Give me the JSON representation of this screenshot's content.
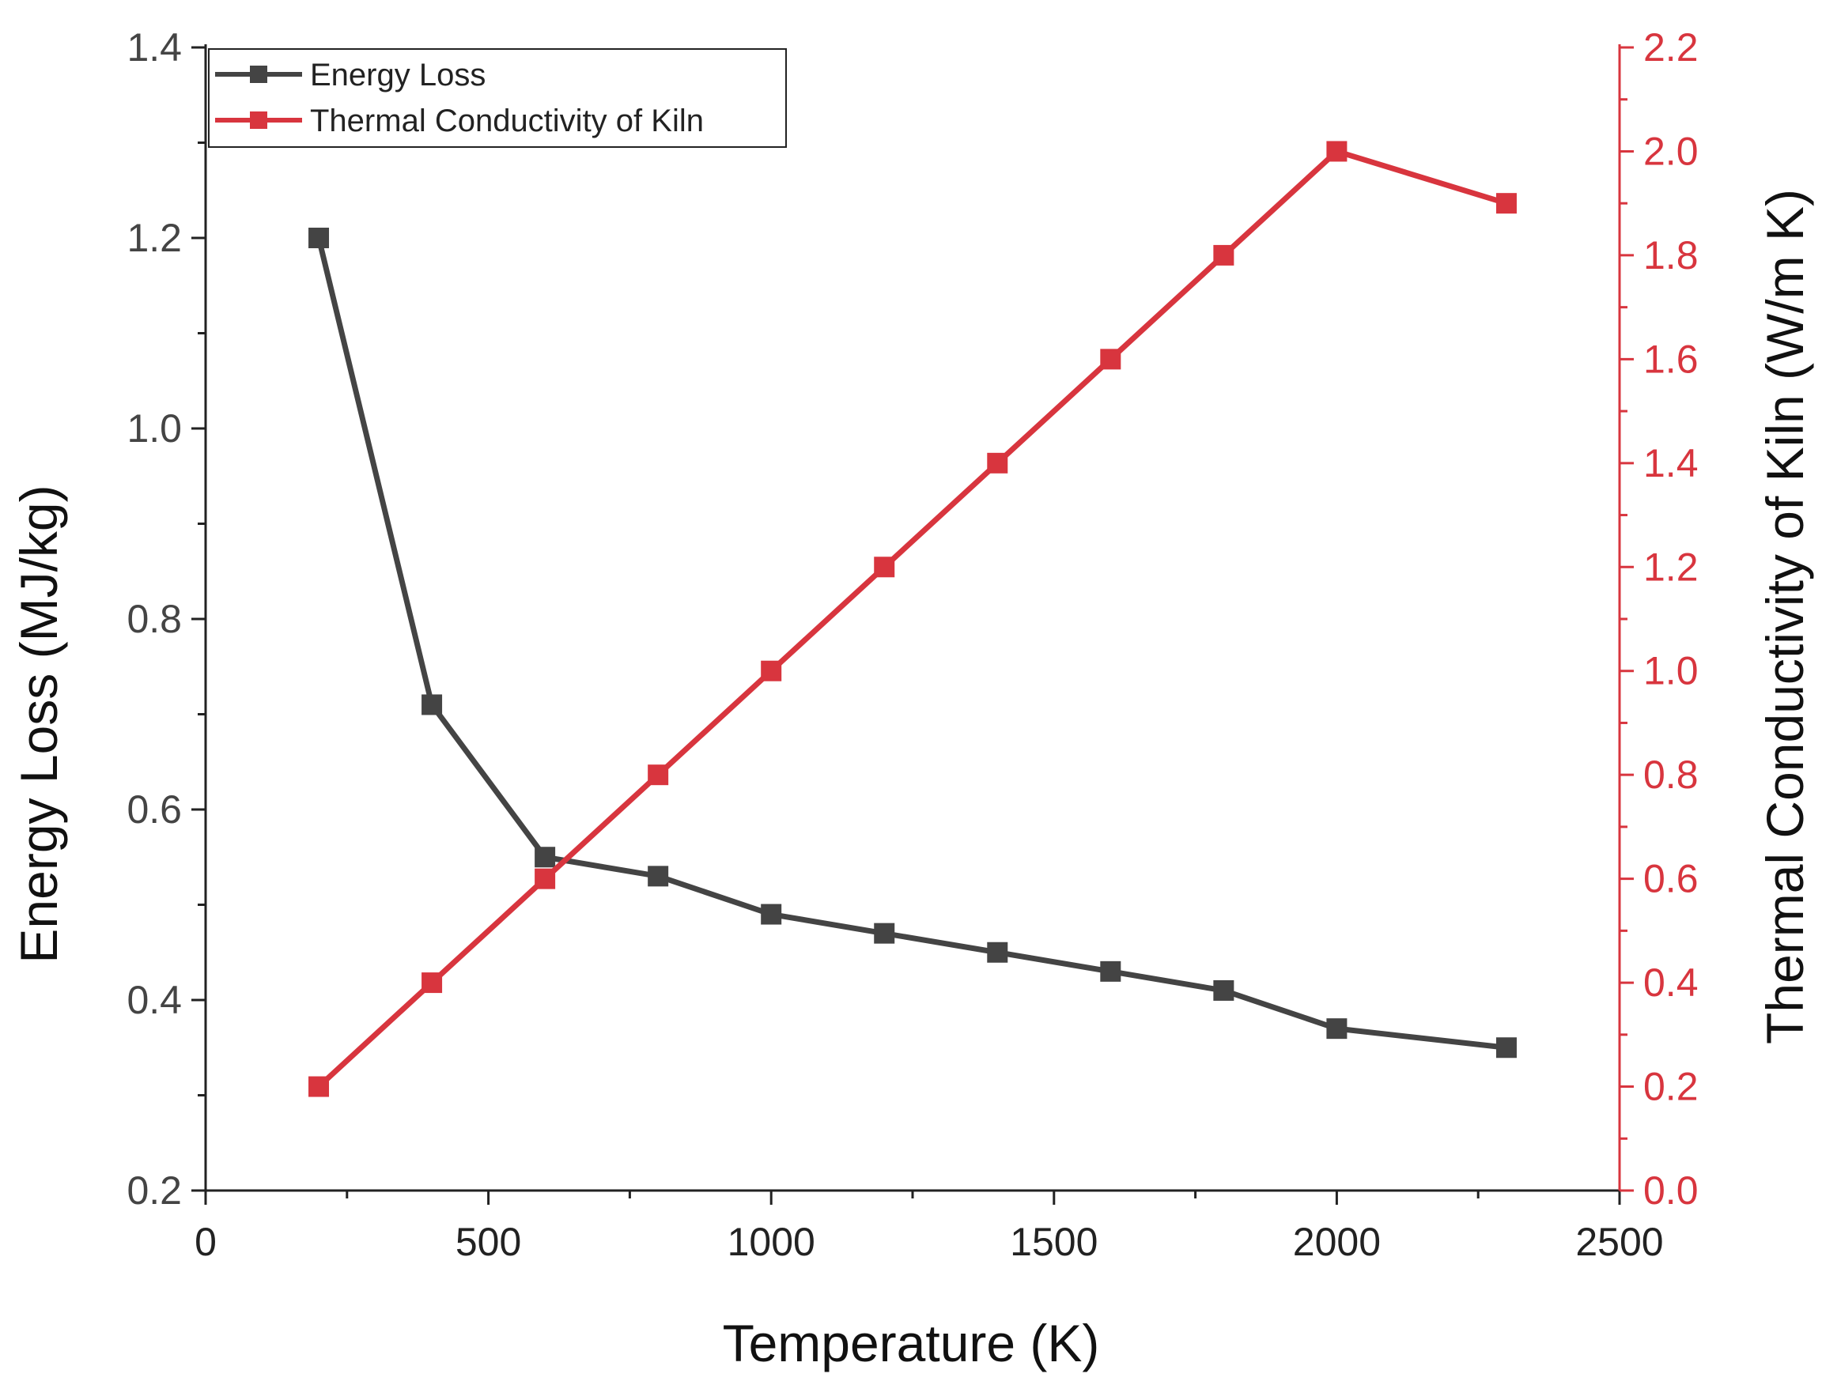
{
  "colors": {
    "energy_loss": "#444444",
    "thermal_conductivity": "#d8353e",
    "axis": "#222222",
    "background": "#ffffff"
  },
  "chart_data": {
    "type": "line",
    "title": "",
    "xlabel": "Temperature (K)",
    "ylabel_left": "Energy Loss (MJ/kg)",
    "ylabel_right": "Thermal Conductivity of Kiln (W/m K)",
    "xlim": [
      0,
      2500
    ],
    "ylim_left": [
      0.2,
      1.4
    ],
    "ylim_right": [
      0.0,
      2.2
    ],
    "x_ticks": [
      "0",
      "500",
      "1000",
      "1500",
      "2000",
      "2500"
    ],
    "y_left_ticks": [
      "0.2",
      "0.4",
      "0.6",
      "0.8",
      "1.0",
      "1.2",
      "1.4"
    ],
    "y_right_ticks": [
      "0.0",
      "0.2",
      "0.4",
      "0.6",
      "0.8",
      "1.0",
      "1.2",
      "1.4",
      "1.6",
      "1.8",
      "2.0",
      "2.2"
    ],
    "grid": false,
    "legend_position": "top-left",
    "markers": "square",
    "series": [
      {
        "name": "Energy Loss",
        "axis": "left",
        "color": "#444444",
        "x": [
          200,
          400,
          600,
          800,
          1000,
          1200,
          1400,
          1600,
          1800,
          2000,
          2300
        ],
        "y": [
          1.2,
          0.71,
          0.55,
          0.53,
          0.49,
          0.47,
          0.45,
          0.43,
          0.41,
          0.37,
          0.35
        ]
      },
      {
        "name": "Thermal Conductivity of Kiln",
        "axis": "right",
        "color": "#d8353e",
        "x": [
          200,
          400,
          600,
          800,
          1000,
          1200,
          1400,
          1600,
          1800,
          2000,
          2300
        ],
        "y": [
          0.2,
          0.4,
          0.6,
          0.8,
          1.0,
          1.2,
          1.4,
          1.6,
          1.8,
          2.0,
          1.9
        ]
      }
    ]
  }
}
